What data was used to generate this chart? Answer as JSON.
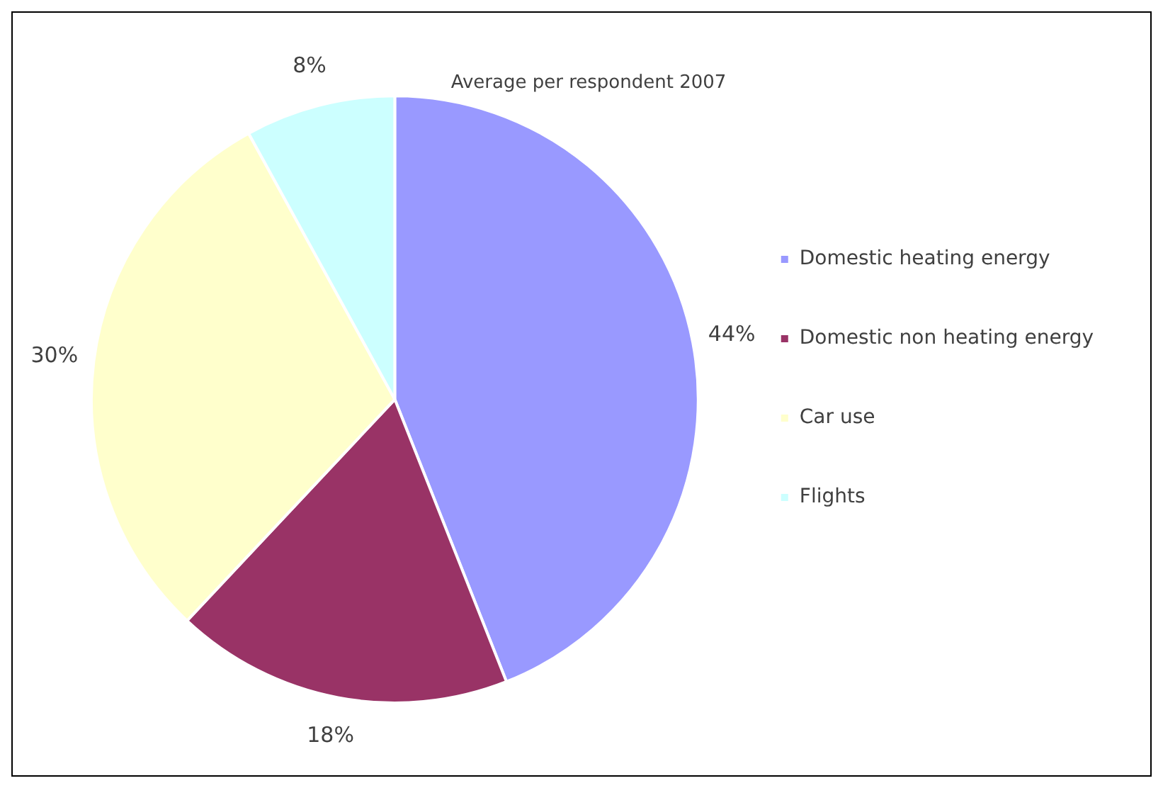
{
  "chart_data": {
    "type": "pie",
    "title": "Average per respondent 2007",
    "categories": [
      "Domestic heating energy",
      "Domestic non heating energy",
      "Car use",
      "Flights"
    ],
    "values": [
      44,
      18,
      30,
      8
    ],
    "colors": [
      "#9999ff",
      "#993366",
      "#ffffcc",
      "#ccffff"
    ],
    "value_labels": [
      "44%",
      "18%",
      "30%",
      "8%"
    ],
    "legend": "right"
  }
}
